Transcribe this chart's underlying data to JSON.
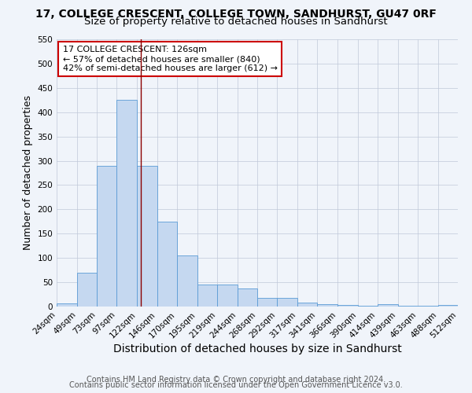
{
  "title_line1": "17, COLLEGE CRESCENT, COLLEGE TOWN, SANDHURST, GU47 0RF",
  "title_line2": "Size of property relative to detached houses in Sandhurst",
  "xlabel": "Distribution of detached houses by size in Sandhurst",
  "ylabel": "Number of detached properties",
  "footnote1": "Contains HM Land Registry data © Crown copyright and database right 2024.",
  "footnote2": "Contains public sector information licensed under the Open Government Licence v3.0.",
  "bar_left_edges": [
    24,
    49,
    73,
    97,
    122,
    146,
    170,
    195,
    219,
    244,
    268,
    292,
    317,
    341,
    366,
    390,
    414,
    439,
    463,
    488
  ],
  "bar_right_edges": [
    49,
    73,
    97,
    122,
    146,
    170,
    195,
    219,
    244,
    268,
    292,
    317,
    341,
    366,
    390,
    414,
    439,
    463,
    488,
    512
  ],
  "bar_heights": [
    7,
    70,
    290,
    425,
    290,
    175,
    105,
    45,
    45,
    38,
    18,
    18,
    8,
    5,
    3,
    1,
    5,
    1,
    1,
    3
  ],
  "bar_color": "#c5d8f0",
  "bar_edge_color": "#5b9bd5",
  "vline_x": 126,
  "vline_color": "#8b0000",
  "annotation_line1": "17 COLLEGE CRESCENT: 126sqm",
  "annotation_line2": "← 57% of detached houses are smaller (840)",
  "annotation_line3": "42% of semi-detached houses are larger (612) →",
  "annotation_box_color": "#ffffff",
  "annotation_box_edge_color": "#cc0000",
  "ylim": [
    0,
    550
  ],
  "yticks": [
    0,
    50,
    100,
    150,
    200,
    250,
    300,
    350,
    400,
    450,
    500,
    550
  ],
  "xtick_labels": [
    "24sqm",
    "49sqm",
    "73sqm",
    "97sqm",
    "122sqm",
    "146sqm",
    "170sqm",
    "195sqm",
    "219sqm",
    "244sqm",
    "268sqm",
    "292sqm",
    "317sqm",
    "341sqm",
    "366sqm",
    "390sqm",
    "414sqm",
    "439sqm",
    "463sqm",
    "488sqm",
    "512sqm"
  ],
  "bg_color": "#f0f4fa",
  "grid_color": "#c0c8d8",
  "title1_fontsize": 10,
  "title2_fontsize": 9.5,
  "xlabel_fontsize": 10,
  "ylabel_fontsize": 9,
  "tick_label_fontsize": 7.5,
  "annotation_fontsize": 8,
  "footnote_fontsize": 7
}
